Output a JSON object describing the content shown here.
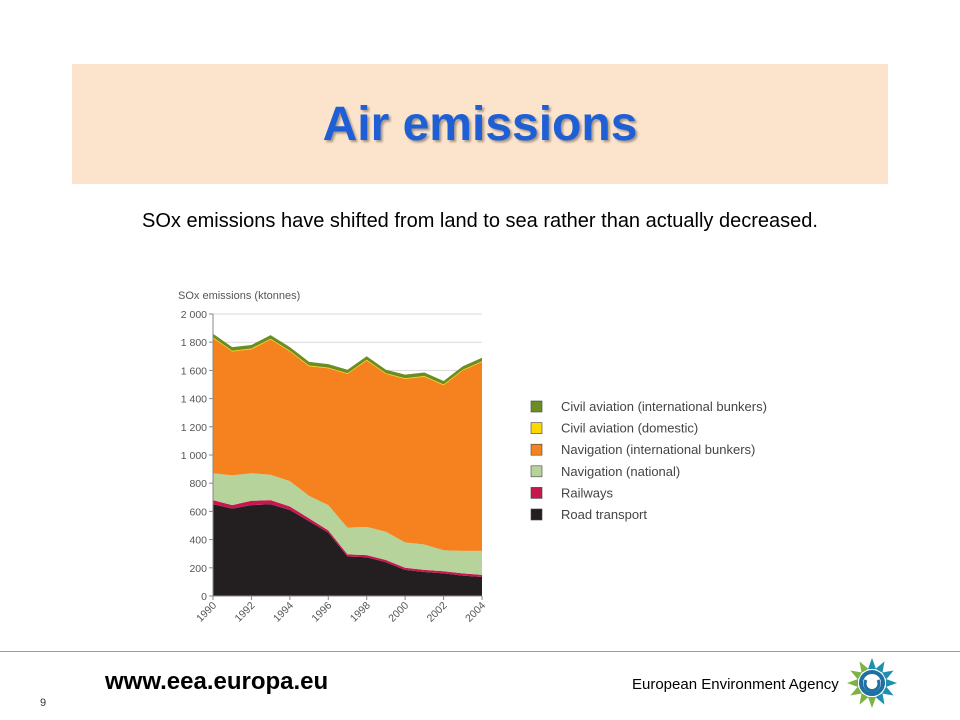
{
  "page": {
    "title": "Air emissions",
    "subtitle": "SOx emissions have shifted from land to sea rather than actually decreased.",
    "page_number": "9",
    "website": "www.eea.europa.eu",
    "agency": "European Environment Agency"
  },
  "colors": {
    "title": "#1f5fd6",
    "title_band": "#fce4cc",
    "road": "#231f20",
    "rail": "#c8174e",
    "nav_national": "#b5d39b",
    "nav_international": "#f5821f",
    "civil_domestic": "#ffd700",
    "civil_international": "#6b8e23"
  },
  "chart_data": {
    "type": "area",
    "stacked": true,
    "title": "SOx emissions (ktonnes)",
    "x": [
      1990,
      1991,
      1992,
      1993,
      1994,
      1995,
      1996,
      1997,
      1998,
      1999,
      2000,
      2001,
      2002,
      2003,
      2004
    ],
    "x_tick_labels": [
      "1990",
      "1992",
      "1994",
      "1996",
      "1998",
      "2000",
      "2002",
      "2004"
    ],
    "ylim": [
      0,
      2000
    ],
    "y_tick_labels": [
      "0",
      "200",
      "400",
      "600",
      "800",
      "1 000",
      "1 200",
      "1 400",
      "1 600",
      "1 800",
      "2 000"
    ],
    "legend_position": "right",
    "series": [
      {
        "name": "Road transport",
        "color": "#231f20",
        "values": [
          650,
          620,
          645,
          650,
          610,
          530,
          450,
          280,
          275,
          240,
          185,
          170,
          160,
          145,
          135
        ]
      },
      {
        "name": "Railways",
        "color": "#c8174e",
        "values": [
          30,
          25,
          30,
          30,
          25,
          20,
          15,
          15,
          15,
          15,
          15,
          15,
          15,
          15,
          15
        ]
      },
      {
        "name": "Navigation (national)",
        "color": "#b5d39b",
        "values": [
          190,
          210,
          195,
          180,
          180,
          160,
          180,
          190,
          200,
          200,
          180,
          180,
          150,
          160,
          170
        ]
      },
      {
        "name": "Navigation (international bunkers)",
        "color": "#f5821f",
        "values": [
          960,
          880,
          880,
          960,
          920,
          920,
          970,
          1090,
          1180,
          1120,
          1160,
          1190,
          1170,
          1280,
          1340
        ]
      },
      {
        "name": "Civil aviation (domestic)",
        "color": "#ffd700",
        "values": [
          5,
          5,
          5,
          5,
          5,
          5,
          5,
          5,
          5,
          5,
          5,
          5,
          5,
          5,
          5
        ]
      },
      {
        "name": "Civil aviation (international bunkers)",
        "color": "#6b8e23",
        "values": [
          25,
          25,
          25,
          25,
          25,
          25,
          25,
          25,
          25,
          25,
          25,
          25,
          25,
          25,
          25
        ]
      }
    ],
    "legend_order": [
      "Civil aviation (international bunkers)",
      "Civil aviation (domestic)",
      "Navigation (international bunkers)",
      "Navigation (national)",
      "Railways",
      "Road transport"
    ]
  }
}
